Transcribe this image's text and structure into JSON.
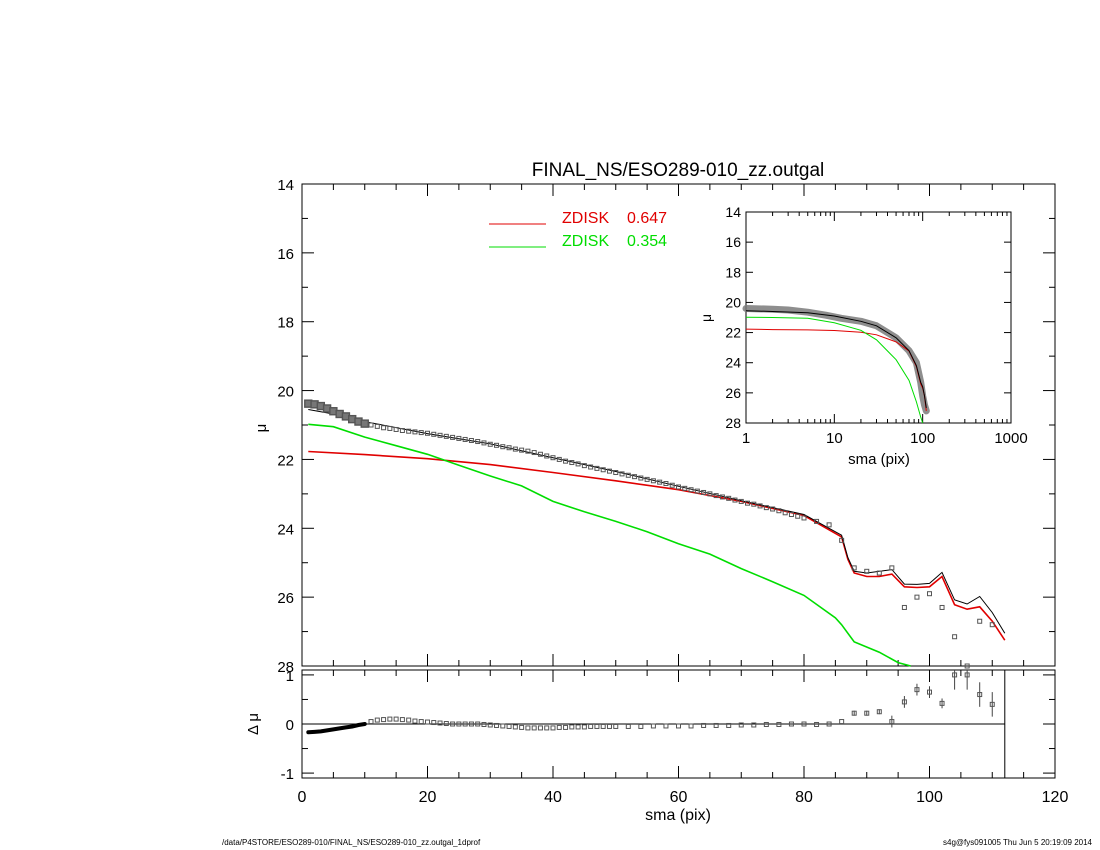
{
  "title": "FINAL_NS/ESO289-010_zz.outgal",
  "footer": {
    "left": "/data/P4STORE/ESO289-010/FINAL_NS/ESO289-010_zz.outgal_1dprof",
    "right": "s4g@fys091005  Thu Jun  5 20:19:09 2014"
  },
  "colors": {
    "red": "#e00000",
    "green": "#00dd00",
    "data": "#555555",
    "model": "#000000"
  },
  "legend": [
    {
      "label": "ZDISK",
      "value": "0.647",
      "color": "#e00000"
    },
    {
      "label": "ZDISK",
      "value": "0.354",
      "color": "#00dd00"
    }
  ],
  "chart_data": [
    {
      "id": "main",
      "type": "line",
      "title": "FINAL_NS/ESO289-010_zz.outgal",
      "xlabel": "",
      "ylabel": "μ",
      "xlim": [
        0,
        120
      ],
      "ylim": [
        28,
        14
      ],
      "y_inverted": true,
      "x_ticks": [
        "0",
        "20",
        "40",
        "60",
        "80",
        "100",
        "120"
      ],
      "y_ticks": [
        "14",
        "16",
        "18",
        "20",
        "22",
        "24",
        "26",
        "28"
      ],
      "series": [
        {
          "name": "ZDISK 0.647",
          "color": "#e00000",
          "x": [
            1,
            10,
            20,
            30,
            40,
            50,
            60,
            70,
            80,
            86,
            87,
            88,
            90,
            92,
            94,
            96,
            98,
            100,
            102,
            104,
            106,
            108,
            110,
            112
          ],
          "y": [
            21.77,
            21.86,
            21.98,
            22.15,
            22.38,
            22.62,
            22.88,
            23.22,
            23.63,
            24.25,
            24.9,
            25.3,
            25.4,
            25.4,
            25.33,
            25.7,
            25.72,
            25.7,
            25.4,
            26.22,
            26.35,
            26.28,
            26.7,
            27.25
          ]
        },
        {
          "name": "ZDISK 0.354",
          "color": "#00dd00",
          "x": [
            1,
            5,
            10,
            15,
            20,
            25,
            30,
            35,
            40,
            45,
            50,
            55,
            60,
            65,
            70,
            75,
            80,
            85,
            86,
            88,
            92,
            95,
            97
          ],
          "y": [
            20.98,
            21.05,
            21.35,
            21.6,
            21.85,
            22.17,
            22.48,
            22.77,
            23.22,
            23.52,
            23.8,
            24.1,
            24.45,
            24.75,
            25.17,
            25.55,
            25.95,
            26.6,
            26.8,
            27.3,
            27.6,
            27.9,
            28.0
          ]
        },
        {
          "name": "model",
          "color": "#000000",
          "x": [
            1,
            5,
            10,
            20,
            30,
            40,
            50,
            60,
            70,
            80,
            86,
            87,
            88,
            90,
            94,
            96,
            98,
            100,
            102,
            104,
            106,
            108,
            110,
            112
          ],
          "y": [
            20.55,
            20.68,
            20.9,
            21.25,
            21.55,
            21.95,
            22.35,
            22.78,
            23.2,
            23.6,
            24.2,
            24.85,
            25.25,
            25.3,
            25.2,
            25.62,
            25.63,
            25.6,
            25.28,
            26.08,
            26.2,
            25.98,
            26.45,
            27.05
          ]
        },
        {
          "name": "data",
          "color": "#555555",
          "marker": "square",
          "x": [
            1,
            2,
            3,
            4,
            5,
            6,
            7,
            8,
            9,
            10,
            11,
            12,
            13,
            14,
            15,
            16,
            17,
            18,
            19,
            20,
            21,
            22,
            23,
            24,
            25,
            26,
            27,
            28,
            29,
            30,
            31,
            32,
            33,
            34,
            35,
            36,
            37,
            38,
            39,
            40,
            41,
            42,
            43,
            44,
            45,
            46,
            47,
            48,
            49,
            50,
            51,
            52,
            53,
            54,
            55,
            56,
            57,
            58,
            59,
            60,
            61,
            62,
            63,
            64,
            65,
            66,
            67,
            68,
            69,
            70,
            71,
            72,
            73,
            74,
            75,
            76,
            77,
            78,
            79,
            80,
            82,
            84,
            86,
            88,
            90,
            92,
            94,
            96,
            98,
            100,
            102,
            104,
            106,
            108,
            110
          ],
          "y": [
            20.38,
            20.4,
            20.45,
            20.52,
            20.6,
            20.68,
            20.75,
            20.83,
            20.9,
            20.96,
            21.0,
            21.04,
            21.08,
            21.1,
            21.13,
            21.16,
            21.18,
            21.2,
            21.22,
            21.24,
            21.27,
            21.3,
            21.33,
            21.36,
            21.39,
            21.42,
            21.45,
            21.48,
            21.52,
            21.56,
            21.59,
            21.63,
            21.66,
            21.7,
            21.73,
            21.76,
            21.8,
            21.85,
            21.9,
            21.95,
            22.0,
            22.05,
            22.09,
            22.13,
            22.18,
            22.22,
            22.26,
            22.3,
            22.34,
            22.38,
            22.42,
            22.46,
            22.5,
            22.54,
            22.58,
            22.62,
            22.66,
            22.7,
            22.75,
            22.8,
            22.84,
            22.88,
            22.92,
            22.96,
            23.0,
            23.05,
            23.09,
            23.13,
            23.18,
            23.22,
            23.27,
            23.3,
            23.35,
            23.4,
            23.44,
            23.49,
            23.55,
            23.6,
            23.65,
            23.7,
            23.8,
            23.9,
            24.35,
            25.15,
            25.25,
            25.3,
            25.15,
            26.3,
            26.0,
            25.9,
            26.3,
            27.15,
            28.0,
            26.7,
            26.8
          ]
        }
      ]
    },
    {
      "id": "inset",
      "type": "line",
      "xlabel": "sma (pix)",
      "ylabel": "μ",
      "x_scale": "log",
      "xlim": [
        1,
        1000
      ],
      "ylim": [
        28,
        14
      ],
      "y_inverted": true,
      "x_ticks": [
        "1",
        "10",
        "100",
        "1000"
      ],
      "y_ticks": [
        "14",
        "16",
        "18",
        "20",
        "22",
        "24",
        "26",
        "28"
      ],
      "series": [
        {
          "name": "data",
          "color": "#555555",
          "x": [
            1,
            2,
            3,
            5,
            8,
            12,
            20,
            30,
            50,
            70,
            85,
            95,
            100,
            105,
            110
          ],
          "y": [
            20.4,
            20.45,
            20.5,
            20.65,
            20.85,
            21.05,
            21.25,
            21.55,
            22.35,
            23.2,
            24.0,
            25.3,
            26.2,
            26.8,
            27.2
          ]
        },
        {
          "name": "ZDISK 0.647",
          "color": "#e00000",
          "x": [
            1,
            2,
            5,
            10,
            20,
            30,
            50,
            70,
            85,
            95,
            100,
            105,
            110
          ],
          "y": [
            21.77,
            21.8,
            21.82,
            21.86,
            21.98,
            22.15,
            22.62,
            23.22,
            24.25,
            25.4,
            25.7,
            26.2,
            27.2
          ]
        },
        {
          "name": "ZDISK 0.354",
          "color": "#00dd00",
          "x": [
            1,
            2,
            5,
            10,
            20,
            30,
            50,
            70,
            85,
            95,
            100
          ],
          "y": [
            20.98,
            21.0,
            21.05,
            21.35,
            21.85,
            22.48,
            23.8,
            25.17,
            26.6,
            27.6,
            28.0
          ]
        },
        {
          "name": "model",
          "color": "#000000",
          "x": [
            1,
            2,
            5,
            10,
            20,
            30,
            50,
            70,
            85,
            95,
            100,
            105,
            110
          ],
          "y": [
            20.55,
            20.6,
            20.68,
            20.9,
            21.25,
            21.55,
            22.35,
            23.2,
            24.2,
            25.3,
            25.6,
            26.2,
            27.0
          ]
        }
      ]
    },
    {
      "id": "residual",
      "type": "scatter",
      "xlabel": "sma (pix)",
      "ylabel": "Δ μ",
      "xlim": [
        0,
        120
      ],
      "ylim": [
        -1.1,
        1.1
      ],
      "x_ticks": [
        "0",
        "20",
        "40",
        "60",
        "80",
        "100",
        "120"
      ],
      "y_ticks": [
        "1",
        "0",
        "-1"
      ],
      "reference_line": 0,
      "cutoff_x": 112,
      "thick_series": {
        "x": [
          1,
          2,
          3,
          4,
          5,
          6,
          7,
          8,
          9,
          10
        ],
        "y": [
          -0.17,
          -0.16,
          -0.15,
          -0.13,
          -0.11,
          -0.09,
          -0.07,
          -0.05,
          -0.02,
          0.0
        ]
      },
      "points": {
        "x": [
          11,
          12,
          13,
          14,
          15,
          16,
          17,
          18,
          19,
          20,
          21,
          22,
          23,
          24,
          25,
          26,
          27,
          28,
          29,
          30,
          31,
          32,
          33,
          34,
          35,
          36,
          37,
          38,
          39,
          40,
          41,
          42,
          43,
          44,
          45,
          46,
          47,
          48,
          49,
          50,
          52,
          54,
          56,
          58,
          60,
          62,
          64,
          66,
          68,
          70,
          72,
          74,
          76,
          78,
          80,
          82,
          84,
          86,
          88,
          90,
          92,
          94,
          96,
          98,
          100,
          102,
          104,
          106,
          108,
          110
        ],
        "y": [
          0.05,
          0.08,
          0.09,
          0.1,
          0.1,
          0.09,
          0.08,
          0.06,
          0.05,
          0.04,
          0.03,
          0.02,
          0.01,
          0.0,
          0.0,
          0.0,
          0.0,
          0.0,
          -0.01,
          -0.02,
          -0.03,
          -0.04,
          -0.05,
          -0.06,
          -0.07,
          -0.08,
          -0.08,
          -0.08,
          -0.08,
          -0.08,
          -0.07,
          -0.07,
          -0.06,
          -0.06,
          -0.06,
          -0.05,
          -0.05,
          -0.05,
          -0.05,
          -0.05,
          -0.05,
          -0.05,
          -0.04,
          -0.04,
          -0.04,
          -0.04,
          -0.03,
          -0.03,
          -0.03,
          -0.02,
          -0.02,
          -0.01,
          -0.01,
          0.0,
          0.0,
          -0.01,
          0.0,
          0.05,
          0.22,
          0.22,
          0.25,
          0.05,
          0.45,
          0.7,
          0.65,
          0.42,
          1.0,
          1.0,
          0.6,
          0.4
        ],
        "err": [
          0,
          0,
          0,
          0,
          0,
          0,
          0,
          0,
          0,
          0,
          0,
          0,
          0,
          0,
          0,
          0,
          0,
          0,
          0,
          0,
          0,
          0,
          0,
          0,
          0,
          0,
          0,
          0,
          0,
          0,
          0,
          0,
          0,
          0,
          0,
          0,
          0,
          0,
          0,
          0,
          0,
          0,
          0,
          0,
          0,
          0,
          0,
          0,
          0,
          0,
          0,
          0,
          0,
          0,
          0,
          0,
          0,
          0,
          0.05,
          0.05,
          0.05,
          0.12,
          0.12,
          0.12,
          0.12,
          0.1,
          0.3,
          0.3,
          0.25,
          0.25
        ]
      }
    }
  ]
}
